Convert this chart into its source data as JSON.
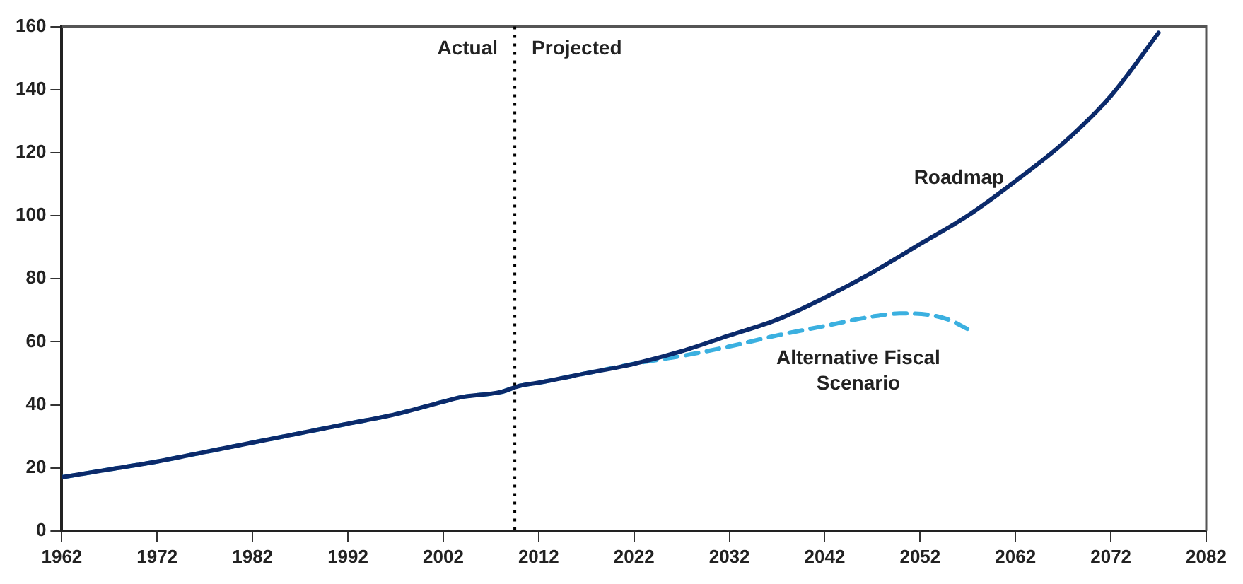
{
  "chart_data": {
    "type": "line",
    "series": [
      {
        "name": "Roadmap",
        "color": "#0b2a6b",
        "line_style": "solid",
        "x": [
          1962,
          1967,
          1972,
          1977,
          1982,
          1987,
          1992,
          1997,
          2002,
          2004,
          2008,
          2010,
          2012,
          2017,
          2022,
          2027,
          2032,
          2037,
          2042,
          2047,
          2052,
          2057,
          2062,
          2067,
          2072,
          2077
        ],
        "values": [
          17,
          19.5,
          22,
          25,
          28,
          31,
          34,
          37,
          41,
          42.5,
          44,
          46,
          47,
          50,
          53,
          57,
          62,
          67,
          74,
          82,
          91,
          100,
          111,
          123,
          138,
          158
        ]
      },
      {
        "name": "Alternative Fiscal Scenario",
        "color": "#3bb0e0",
        "line_style": "dashed",
        "x": [
          1962,
          1967,
          1972,
          1977,
          1982,
          1987,
          1992,
          1997,
          2002,
          2004,
          2008,
          2010,
          2012,
          2017,
          2022,
          2027,
          2032,
          2037,
          2042,
          2047,
          2050,
          2053,
          2055,
          2057
        ],
        "values": [
          17,
          19.5,
          22,
          25,
          28,
          31,
          34,
          37,
          41,
          42.5,
          44,
          46,
          47,
          50,
          53,
          55.5,
          58.5,
          62,
          65,
          68,
          69,
          68.5,
          67,
          64
        ]
      }
    ],
    "xlim": [
      1962,
      2082
    ],
    "xticks": [
      1962,
      1972,
      1982,
      1992,
      2002,
      2012,
      2022,
      2032,
      2042,
      2052,
      2062,
      2072,
      2082
    ],
    "ylim": [
      0,
      160
    ],
    "yticks": [
      0,
      20,
      40,
      60,
      80,
      100,
      120,
      140,
      160
    ],
    "grid": false,
    "legend": false,
    "marker": "none",
    "ref_lines": [
      {
        "axis": "x",
        "value": 2009.5,
        "line_style": "dotted",
        "color": "#000000"
      }
    ],
    "annotations": [
      "Actual",
      "Projected"
    ]
  }
}
